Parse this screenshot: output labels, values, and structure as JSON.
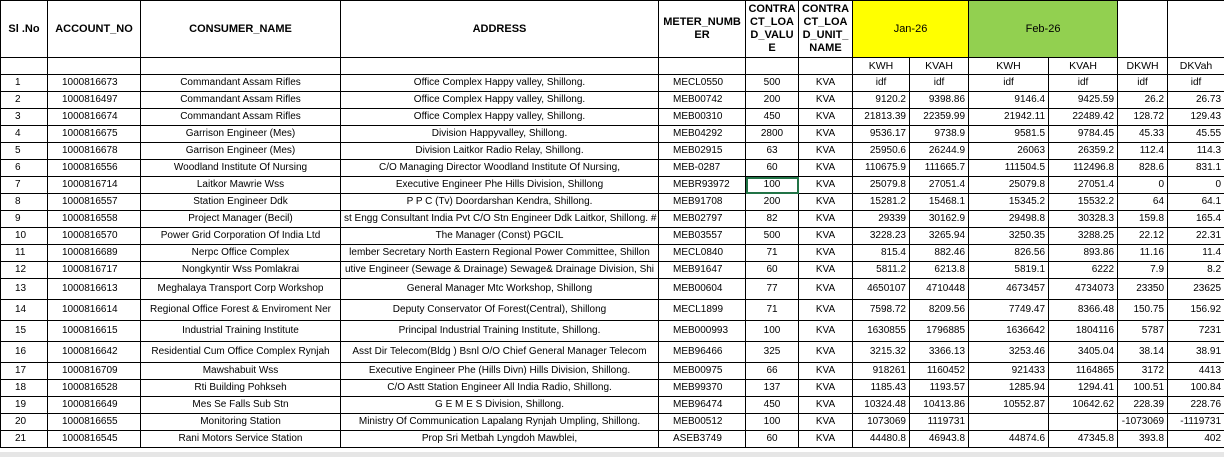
{
  "header": {
    "columns": [
      "Sl .No",
      "ACCOUNT_NO",
      "CONSUMER_NAME",
      "ADDRESS",
      "METER_NUMBER",
      "CONTRACT_LOAD_VALUE",
      "CONTRACT_LOAD_UNIT_NAME"
    ],
    "months": [
      "Jan-26",
      "Feb-26"
    ],
    "subcolumns": [
      "KWH",
      "KVAH",
      "KWH",
      "KVAH",
      "DKWH",
      "DKVah"
    ]
  },
  "table": {
    "rows": [
      [
        1,
        1000816673,
        "Commandant Assam Rifles",
        "Office Complex Happy valley, Shillong.",
        "MECL0550",
        500,
        "KVA",
        "idf",
        "idf",
        "idf",
        "idf",
        "idf",
        "idf"
      ],
      [
        2,
        1000816497,
        "Commandant Assam Rifles",
        "Office Complex Happy valley, Shillong.",
        "MEB00742",
        200,
        "KVA",
        9120.2,
        9398.86,
        9146.4,
        9425.59,
        26.2,
        26.73
      ],
      [
        3,
        1000816674,
        "Commandant Assam Rifles",
        "Office Complex Happy valley, Shillong.",
        "MEB00310",
        450,
        "KVA",
        21813.39,
        22359.99,
        21942.11,
        22489.42,
        128.72,
        129.43
      ],
      [
        4,
        1000816675,
        "Garrison Engineer (Mes)",
        "Division Happyvalley, Shillong.",
        "MEB04292",
        2800,
        "KVA",
        9536.17,
        9738.9,
        9581.5,
        9784.45,
        45.33,
        45.55
      ],
      [
        5,
        1000816678,
        "Garrison Engineer (Mes)",
        "Division Laitkor Radio Relay, Shillong.",
        "MEB02915",
        63,
        "KVA",
        25950.6,
        26244.9,
        26063,
        26359.2,
        112.4,
        114.3
      ],
      [
        6,
        1000816556,
        "Woodland Institute Of Nursing",
        "C/O Managing Director Woodland Institute Of Nursing,",
        "MEB-0287",
        60,
        "KVA",
        110675.9,
        111665.7,
        111504.5,
        112496.8,
        828.6,
        831.1
      ],
      [
        7,
        1000816714,
        "Laitkor Mawrie Wss",
        "Executive Engineer Phe Hills Division, Shillong",
        "MEBR93972",
        100,
        "KVA",
        25079.8,
        27051.4,
        25079.8,
        27051.4,
        0,
        0
      ],
      [
        8,
        1000816557,
        "Station Engineer Ddk",
        "P P C (Tv) Doordarshan Kendra, Shillong.",
        "MEB91708",
        200,
        "KVA",
        15281.2,
        15468.1,
        15345.2,
        15532.2,
        64,
        64.1
      ],
      [
        9,
        1000816558,
        "Project Manager (Becil)",
        "st Engg Consultant India Pvt C/O Stn Engineer Ddk Laitkor, Shillong. #",
        "MEB02797",
        82,
        "KVA",
        29339,
        30162.9,
        29498.8,
        30328.3,
        159.8,
        165.4
      ],
      [
        10,
        1000816570,
        "Power Grid Corporation Of India Ltd",
        "The Manager (Const) PGCIL",
        "MEB03557",
        500,
        "KVA",
        3228.23,
        3265.94,
        3250.35,
        3288.25,
        22.12,
        22.31
      ],
      [
        11,
        1000816689,
        "Nerpc Office Complex",
        "lember Secretary North Eastern Regional Power Committee, Shillon",
        "MECL0840",
        71,
        "KVA",
        815.4,
        882.46,
        826.56,
        893.86,
        11.16,
        11.4
      ],
      [
        12,
        1000816717,
        "Nongkyntir Wss Pomlakrai",
        "utive Engineer (Sewage & Drainage) Sewage& Drainage Division, Shi",
        "MEB91647",
        60,
        "KVA",
        5811.2,
        6213.8,
        5819.1,
        6222,
        7.9,
        8.2
      ],
      [
        13,
        1000816613,
        "Meghalaya Transport Corp Workshop",
        "General Manager Mtc Workshop, Shillong",
        "MEB00604",
        77,
        "KVA",
        4650107,
        4710448,
        4673457,
        4734073,
        23350,
        23625
      ],
      [
        14,
        1000816614,
        "Regional Office Forest & Enviroment Ner",
        "Deputy Conservator Of Forest(Central), Shillong",
        "MECL1899",
        71,
        "KVA",
        7598.72,
        8209.56,
        7749.47,
        8366.48,
        150.75,
        156.92
      ],
      [
        15,
        1000816615,
        "Industrial Training Institute",
        "Principal Industrial Training Institute, Shillong.",
        "MEB000993",
        100,
        "KVA",
        1630855,
        1796885,
        1636642,
        1804116,
        5787,
        7231
      ],
      [
        16,
        1000816642,
        "Residential Cum Office Complex Rynjah",
        "Asst Dir Telecom(Bldg ) Bsnl O/O Chief General Manager Telecom",
        "MEB96466",
        325,
        "KVA",
        3215.32,
        3366.13,
        3253.46,
        3405.04,
        38.14,
        38.91
      ],
      [
        17,
        1000816709,
        "Mawshabuit Wss",
        "Executive Engineer Phe (Hills Divn) Hills Division, Shillong.",
        "MEB00975",
        66,
        "KVA",
        918261,
        1160452,
        921433,
        1164865,
        3172,
        4413
      ],
      [
        18,
        1000816528,
        "Rti Building Pohkseh",
        "C/O Astt Station Engineer All India Radio, Shillong.",
        "MEB99370",
        137,
        "KVA",
        1185.43,
        1193.57,
        1285.94,
        1294.41,
        100.51,
        100.84
      ],
      [
        19,
        1000816649,
        "Mes Se Falls Sub Stn",
        "G E M E S Division, Shillong.",
        "MEB96474",
        450,
        "KVA",
        10324.48,
        10413.86,
        10552.87,
        10642.62,
        228.39,
        228.76
      ],
      [
        20,
        1000816655,
        "Monitoring Station",
        "Ministry Of Communication Lapalang Rynjah Umpling, Shillong.",
        "MEB00512",
        100,
        "KVA",
        1073069,
        1119731,
        null,
        null,
        -1073069,
        -1119731
      ],
      [
        21,
        1000816545,
        "Rani Motors Service Station",
        "Prop Sri Metbah Lyngdoh Mawblei,",
        "ASEB3749",
        60,
        "KVA",
        44480.8,
        46943.8,
        44874.6,
        47345.8,
        393.8,
        402
      ]
    ]
  }
}
